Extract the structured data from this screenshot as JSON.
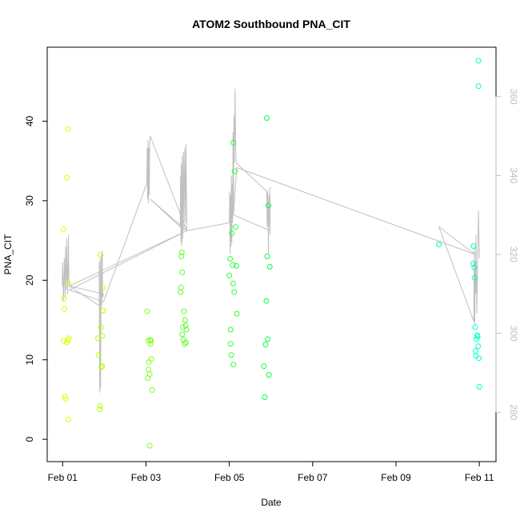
{
  "chart_data": {
    "type": "scatter",
    "title": "ATOM2 Southbound PNA_CIT",
    "xlabel": "Date",
    "ylabel": "PNA_CIT",
    "x_ticks": [
      "Feb 01",
      "Feb 03",
      "Feb 05",
      "Feb 07",
      "Feb 09",
      "Feb 11"
    ],
    "x_tick_days": [
      1,
      3,
      5,
      7,
      9,
      11
    ],
    "xlim": [
      0.63,
      11.4
    ],
    "y_ticks": [
      0,
      10,
      20,
      30,
      40
    ],
    "ylim": [
      -2.8,
      49.3
    ],
    "y2_ticks": [
      280,
      300,
      320,
      340,
      360
    ],
    "y2lim": [
      267.5,
      372.5
    ],
    "grid": false,
    "colors": {
      "line": "#c0c0c0",
      "right_axis": "#bdbdbd",
      "points_gradient": [
        "#ddff00",
        "#00ff44",
        "#00ffc8"
      ]
    },
    "points": [
      {
        "x": 1.02,
        "y": 26.4
      },
      {
        "x": 1.03,
        "y": 17.7
      },
      {
        "x": 1.03,
        "y": 12.4
      },
      {
        "x": 1.04,
        "y": 16.4
      },
      {
        "x": 1.06,
        "y": 5.4
      },
      {
        "x": 1.07,
        "y": 5.1
      },
      {
        "x": 1.1,
        "y": 32.9
      },
      {
        "x": 1.1,
        "y": 12.2
      },
      {
        "x": 1.13,
        "y": 39.0
      },
      {
        "x": 1.13,
        "y": 12.5
      },
      {
        "x": 1.15,
        "y": 12.7
      },
      {
        "x": 1.14,
        "y": 2.5
      },
      {
        "x": 1.14,
        "y": 19.6
      },
      {
        "x": 1.85,
        "y": 12.7
      },
      {
        "x": 1.86,
        "y": 10.6
      },
      {
        "x": 1.89,
        "y": 3.8
      },
      {
        "x": 1.9,
        "y": 4.2
      },
      {
        "x": 1.92,
        "y": 14.1
      },
      {
        "x": 1.91,
        "y": 23.2
      },
      {
        "x": 1.93,
        "y": 9.1
      },
      {
        "x": 1.95,
        "y": 9.2
      },
      {
        "x": 1.95,
        "y": 13.0
      },
      {
        "x": 1.97,
        "y": 16.2
      },
      {
        "x": 1.96,
        "y": 19.1
      },
      {
        "x": 3.03,
        "y": 16.1
      },
      {
        "x": 3.05,
        "y": 12.4
      },
      {
        "x": 3.06,
        "y": 8.8
      },
      {
        "x": 3.07,
        "y": 9.7
      },
      {
        "x": 3.04,
        "y": 7.7
      },
      {
        "x": 3.09,
        "y": 8.2
      },
      {
        "x": 3.1,
        "y": 12.5
      },
      {
        "x": 3.11,
        "y": 12.0
      },
      {
        "x": 3.12,
        "y": 12.4
      },
      {
        "x": 3.13,
        "y": 10.1
      },
      {
        "x": 3.15,
        "y": 6.2
      },
      {
        "x": 3.09,
        "y": -0.8
      },
      {
        "x": 3.83,
        "y": 18.5
      },
      {
        "x": 3.84,
        "y": 19.1
      },
      {
        "x": 3.85,
        "y": 23.0
      },
      {
        "x": 3.86,
        "y": 23.5
      },
      {
        "x": 3.87,
        "y": 21.0
      },
      {
        "x": 3.87,
        "y": 13.2
      },
      {
        "x": 3.89,
        "y": 14.1
      },
      {
        "x": 3.91,
        "y": 16.1
      },
      {
        "x": 3.9,
        "y": 12.5
      },
      {
        "x": 3.93,
        "y": 12.0
      },
      {
        "x": 3.94,
        "y": 15.0
      },
      {
        "x": 3.95,
        "y": 14.3
      },
      {
        "x": 3.97,
        "y": 13.8
      },
      {
        "x": 3.96,
        "y": 12.2
      },
      {
        "x": 5.0,
        "y": 20.6
      },
      {
        "x": 5.02,
        "y": 22.7
      },
      {
        "x": 5.03,
        "y": 13.8
      },
      {
        "x": 5.03,
        "y": 12.0
      },
      {
        "x": 5.05,
        "y": 10.6
      },
      {
        "x": 5.06,
        "y": 25.9
      },
      {
        "x": 5.08,
        "y": 21.9
      },
      {
        "x": 5.09,
        "y": 19.6
      },
      {
        "x": 5.1,
        "y": 37.3
      },
      {
        "x": 5.1,
        "y": 9.4
      },
      {
        "x": 5.12,
        "y": 18.5
      },
      {
        "x": 5.13,
        "y": 33.7
      },
      {
        "x": 5.15,
        "y": 26.7
      },
      {
        "x": 5.17,
        "y": 21.8
      },
      {
        "x": 5.18,
        "y": 15.8
      },
      {
        "x": 5.83,
        "y": 9.2
      },
      {
        "x": 5.85,
        "y": 5.3
      },
      {
        "x": 5.87,
        "y": 11.9
      },
      {
        "x": 5.89,
        "y": 17.4
      },
      {
        "x": 5.9,
        "y": 40.4
      },
      {
        "x": 5.92,
        "y": 12.6
      },
      {
        "x": 5.91,
        "y": 23.0
      },
      {
        "x": 5.94,
        "y": 29.4
      },
      {
        "x": 5.95,
        "y": 8.1
      },
      {
        "x": 5.97,
        "y": 21.7
      },
      {
        "x": 10.03,
        "y": 24.5
      },
      {
        "x": 10.85,
        "y": 22.1
      },
      {
        "x": 10.86,
        "y": 24.3
      },
      {
        "x": 10.88,
        "y": 21.6
      },
      {
        "x": 10.89,
        "y": 20.3
      },
      {
        "x": 10.9,
        "y": 14.1
      },
      {
        "x": 10.91,
        "y": 11.1
      },
      {
        "x": 10.92,
        "y": 10.5
      },
      {
        "x": 10.93,
        "y": 12.6
      },
      {
        "x": 10.95,
        "y": 13.1
      },
      {
        "x": 10.96,
        "y": 12.9
      },
      {
        "x": 10.97,
        "y": 11.7
      },
      {
        "x": 10.98,
        "y": 47.6
      },
      {
        "x": 10.98,
        "y": 44.4
      },
      {
        "x": 10.99,
        "y": 10.2
      },
      {
        "x": 11.0,
        "y": 6.6
      }
    ],
    "line_y2": [
      {
        "x": 0.99,
        "y": 312
      },
      {
        "x": 1.0,
        "y": 318
      },
      {
        "x": 1.02,
        "y": 308
      },
      {
        "x": 1.04,
        "y": 319
      },
      {
        "x": 1.06,
        "y": 309
      },
      {
        "x": 1.07,
        "y": 322
      },
      {
        "x": 1.09,
        "y": 311
      },
      {
        "x": 1.1,
        "y": 324
      },
      {
        "x": 1.12,
        "y": 310
      },
      {
        "x": 1.13,
        "y": 315
      },
      {
        "x": 1.14,
        "y": 325
      },
      {
        "x": 1.15,
        "y": 313
      },
      {
        "x": 1.16,
        "y": 312
      },
      {
        "x": 1.88,
        "y": 307
      },
      {
        "x": 1.88,
        "y": 318
      },
      {
        "x": 1.89,
        "y": 285
      },
      {
        "x": 1.9,
        "y": 319
      },
      {
        "x": 1.91,
        "y": 286
      },
      {
        "x": 1.92,
        "y": 306
      },
      {
        "x": 1.93,
        "y": 320
      },
      {
        "x": 1.94,
        "y": 307
      },
      {
        "x": 1.95,
        "y": 321
      },
      {
        "x": 1.96,
        "y": 309
      },
      {
        "x": 1.98,
        "y": 310
      },
      {
        "x": 1.16,
        "y": 312
      },
      {
        "x": 3.98,
        "y": 326
      },
      {
        "x": 1.16,
        "y": 311
      },
      {
        "x": 1.98,
        "y": 308
      },
      {
        "x": 3.02,
        "y": 338
      },
      {
        "x": 3.03,
        "y": 347
      },
      {
        "x": 3.04,
        "y": 334
      },
      {
        "x": 3.05,
        "y": 349
      },
      {
        "x": 3.06,
        "y": 333
      },
      {
        "x": 3.07,
        "y": 347
      },
      {
        "x": 3.08,
        "y": 335
      },
      {
        "x": 3.09,
        "y": 348
      },
      {
        "x": 3.1,
        "y": 350
      },
      {
        "x": 3.98,
        "y": 326
      },
      {
        "x": 3.1,
        "y": 334
      },
      {
        "x": 3.82,
        "y": 327
      },
      {
        "x": 3.83,
        "y": 340
      },
      {
        "x": 3.84,
        "y": 323
      },
      {
        "x": 3.85,
        "y": 343
      },
      {
        "x": 3.86,
        "y": 322
      },
      {
        "x": 3.87,
        "y": 345
      },
      {
        "x": 3.88,
        "y": 324
      },
      {
        "x": 3.9,
        "y": 346
      },
      {
        "x": 3.91,
        "y": 326
      },
      {
        "x": 3.93,
        "y": 347
      },
      {
        "x": 3.95,
        "y": 328
      },
      {
        "x": 3.96,
        "y": 348
      },
      {
        "x": 3.98,
        "y": 326
      },
      {
        "x": 5.0,
        "y": 328
      },
      {
        "x": 5.01,
        "y": 336
      },
      {
        "x": 5.02,
        "y": 320
      },
      {
        "x": 5.03,
        "y": 335
      },
      {
        "x": 5.04,
        "y": 322
      },
      {
        "x": 5.05,
        "y": 340
      },
      {
        "x": 5.06,
        "y": 323
      },
      {
        "x": 5.07,
        "y": 338
      },
      {
        "x": 5.08,
        "y": 328
      },
      {
        "x": 5.09,
        "y": 351
      },
      {
        "x": 5.1,
        "y": 330
      },
      {
        "x": 5.11,
        "y": 355
      },
      {
        "x": 5.12,
        "y": 343
      },
      {
        "x": 5.14,
        "y": 362
      },
      {
        "x": 5.15,
        "y": 350
      },
      {
        "x": 5.16,
        "y": 344
      },
      {
        "x": 5.18,
        "y": 343
      },
      {
        "x": 5.18,
        "y": 343
      },
      {
        "x": 5.9,
        "y": 336
      },
      {
        "x": 5.9,
        "y": 336
      },
      {
        "x": 5.91,
        "y": 327
      },
      {
        "x": 5.92,
        "y": 336
      },
      {
        "x": 5.94,
        "y": 320
      },
      {
        "x": 5.95,
        "y": 335
      },
      {
        "x": 5.97,
        "y": 327
      },
      {
        "x": 5.97,
        "y": 337
      },
      {
        "x": 5.98,
        "y": 325
      },
      {
        "x": 5.98,
        "y": 326
      },
      {
        "x": 5.1,
        "y": 330
      },
      {
        "x": 5.18,
        "y": 342
      },
      {
        "x": 10.9,
        "y": 320
      },
      {
        "x": 10.03,
        "y": 327
      },
      {
        "x": 10.87,
        "y": 303
      },
      {
        "x": 10.87,
        "y": 311
      },
      {
        "x": 10.88,
        "y": 322
      },
      {
        "x": 10.89,
        "y": 302
      },
      {
        "x": 10.9,
        "y": 318
      },
      {
        "x": 10.91,
        "y": 310
      },
      {
        "x": 10.92,
        "y": 325
      },
      {
        "x": 10.94,
        "y": 305
      },
      {
        "x": 10.96,
        "y": 318
      },
      {
        "x": 10.97,
        "y": 325
      },
      {
        "x": 10.98,
        "y": 331
      },
      {
        "x": 11.0,
        "y": 319
      }
    ]
  }
}
